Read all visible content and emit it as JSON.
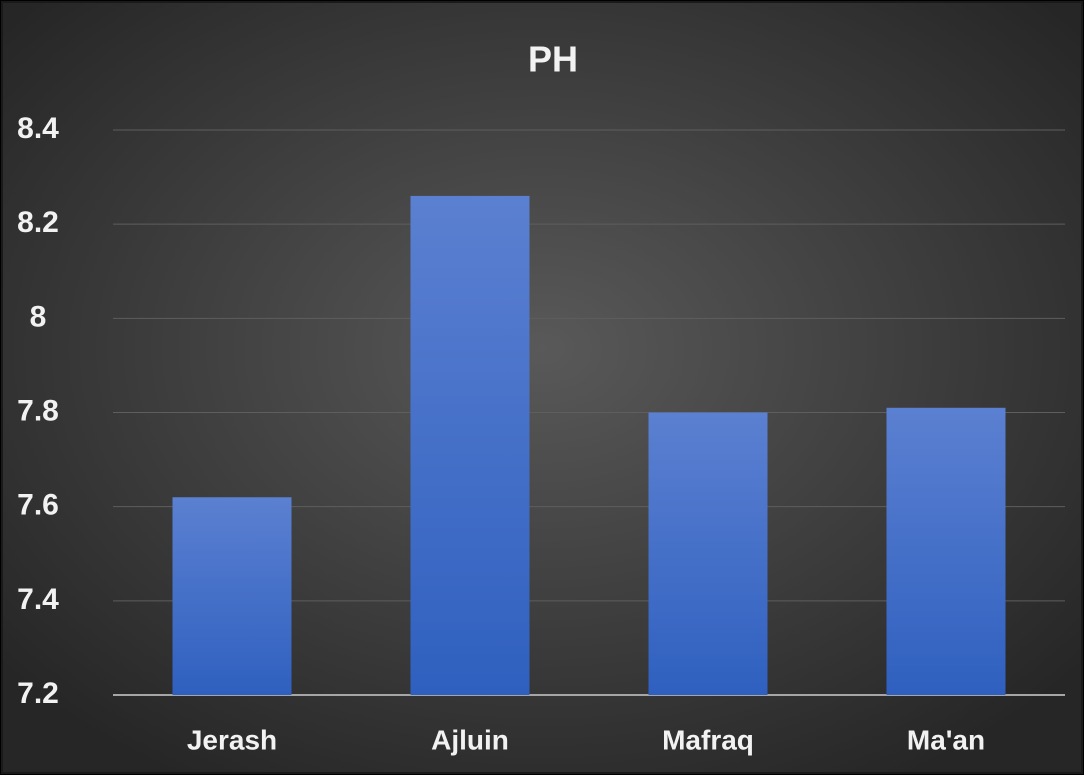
{
  "chart_data": {
    "type": "bar",
    "title": "PH",
    "categories": [
      "Jerash",
      "Ajluin",
      "Mafraq",
      "Ma'an"
    ],
    "values": [
      7.62,
      8.26,
      7.8,
      7.81
    ],
    "color": "#4472c4",
    "ylim": [
      7.2,
      8.4
    ],
    "yticks": [
      7.2,
      7.4,
      7.6,
      7.8,
      8,
      8.2,
      8.4
    ],
    "grid": true
  }
}
